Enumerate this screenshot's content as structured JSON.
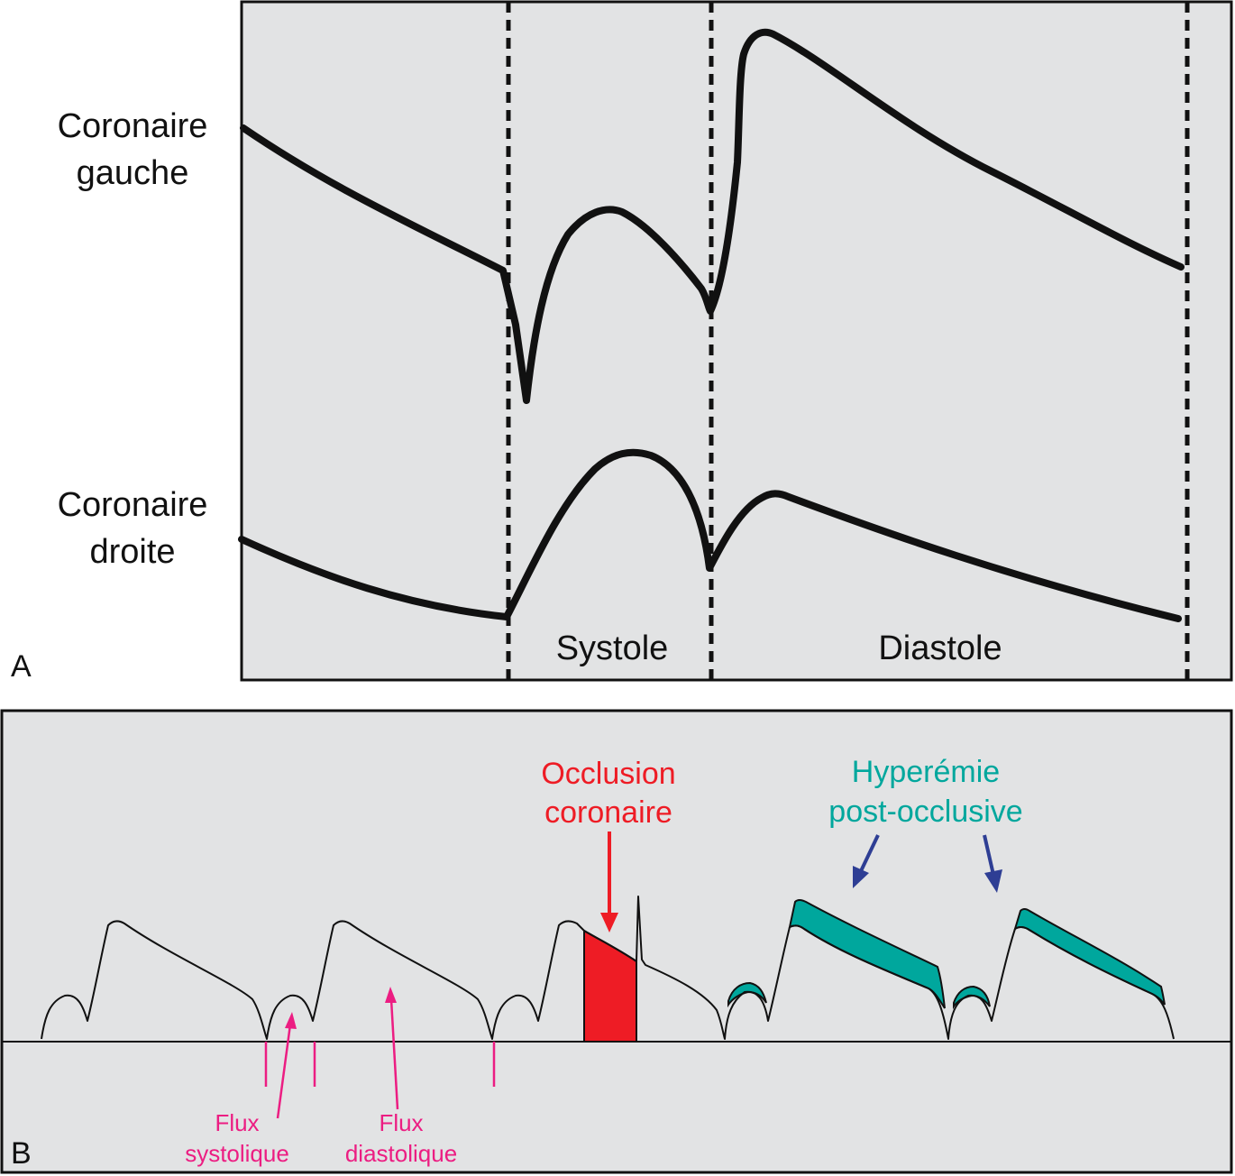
{
  "panel_a": {
    "letter": "A",
    "left_label": [
      "Coronaire",
      "gauche"
    ],
    "right_label": [
      "Coronaire",
      "droite"
    ],
    "phase_systole": "Systole",
    "phase_diastole": "Diastole"
  },
  "panel_b": {
    "letter": "B",
    "occlusion": [
      "Occlusion",
      "coronaire"
    ],
    "hyperemia": [
      "Hyperémie",
      "post-occlusive"
    ],
    "flux_systolique": [
      "Flux",
      "systolique"
    ],
    "flux_diastolique": [
      "Flux",
      "diastolique"
    ]
  },
  "colors": {
    "background": "#e2e3e4",
    "trace": "#111111",
    "occlusion": "#ee1c25",
    "hyperemia": "#00a79d",
    "hyperemia_arrow": "#2e3e94",
    "flux_label": "#ec1d82"
  }
}
